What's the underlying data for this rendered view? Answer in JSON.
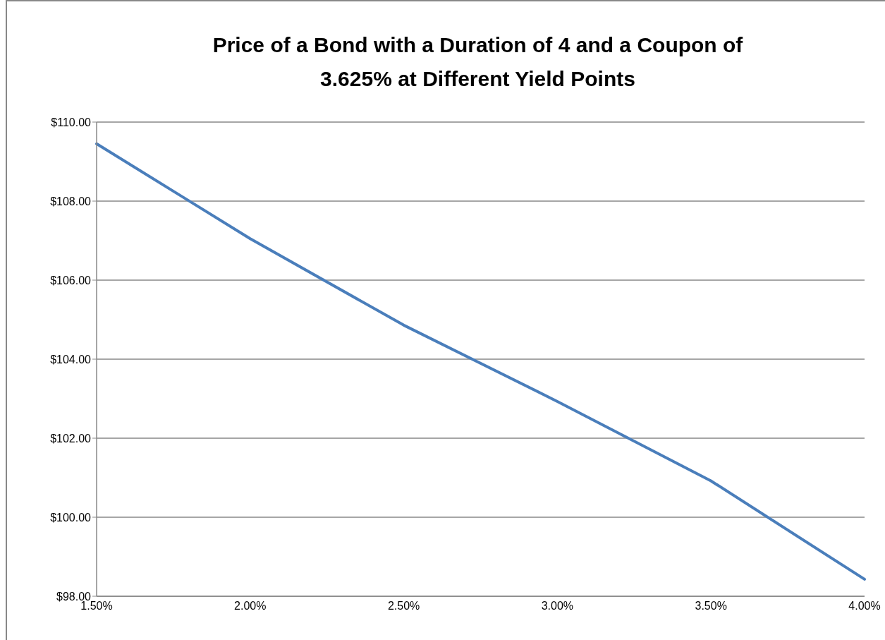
{
  "chart_data": {
    "type": "line",
    "title": "Price of a Bond with a Duration of 4 and a Coupon of 3.625% at Different Yield Points",
    "categories": [
      "1.50%",
      "2.00%",
      "2.50%",
      "3.00%",
      "3.50%",
      "4.00%"
    ],
    "series": [
      {
        "color": "#4a7ebb",
        "values": [
          109.45,
          107.05,
          104.86,
          102.93,
          100.92,
          98.43
        ]
      }
    ],
    "ylim": [
      98,
      110
    ],
    "yticks": [
      {
        "value": 98,
        "label": "$98.00"
      },
      {
        "value": 100,
        "label": "$100.00"
      },
      {
        "value": 102,
        "label": "$102.00"
      },
      {
        "value": 104,
        "label": "$104.00"
      },
      {
        "value": 106,
        "label": "$106.00"
      },
      {
        "value": 108,
        "label": "$108.00"
      },
      {
        "value": 110,
        "label": "$110.00"
      }
    ],
    "grid": "y",
    "legend": false,
    "marker": "none",
    "line_style": "solid"
  }
}
